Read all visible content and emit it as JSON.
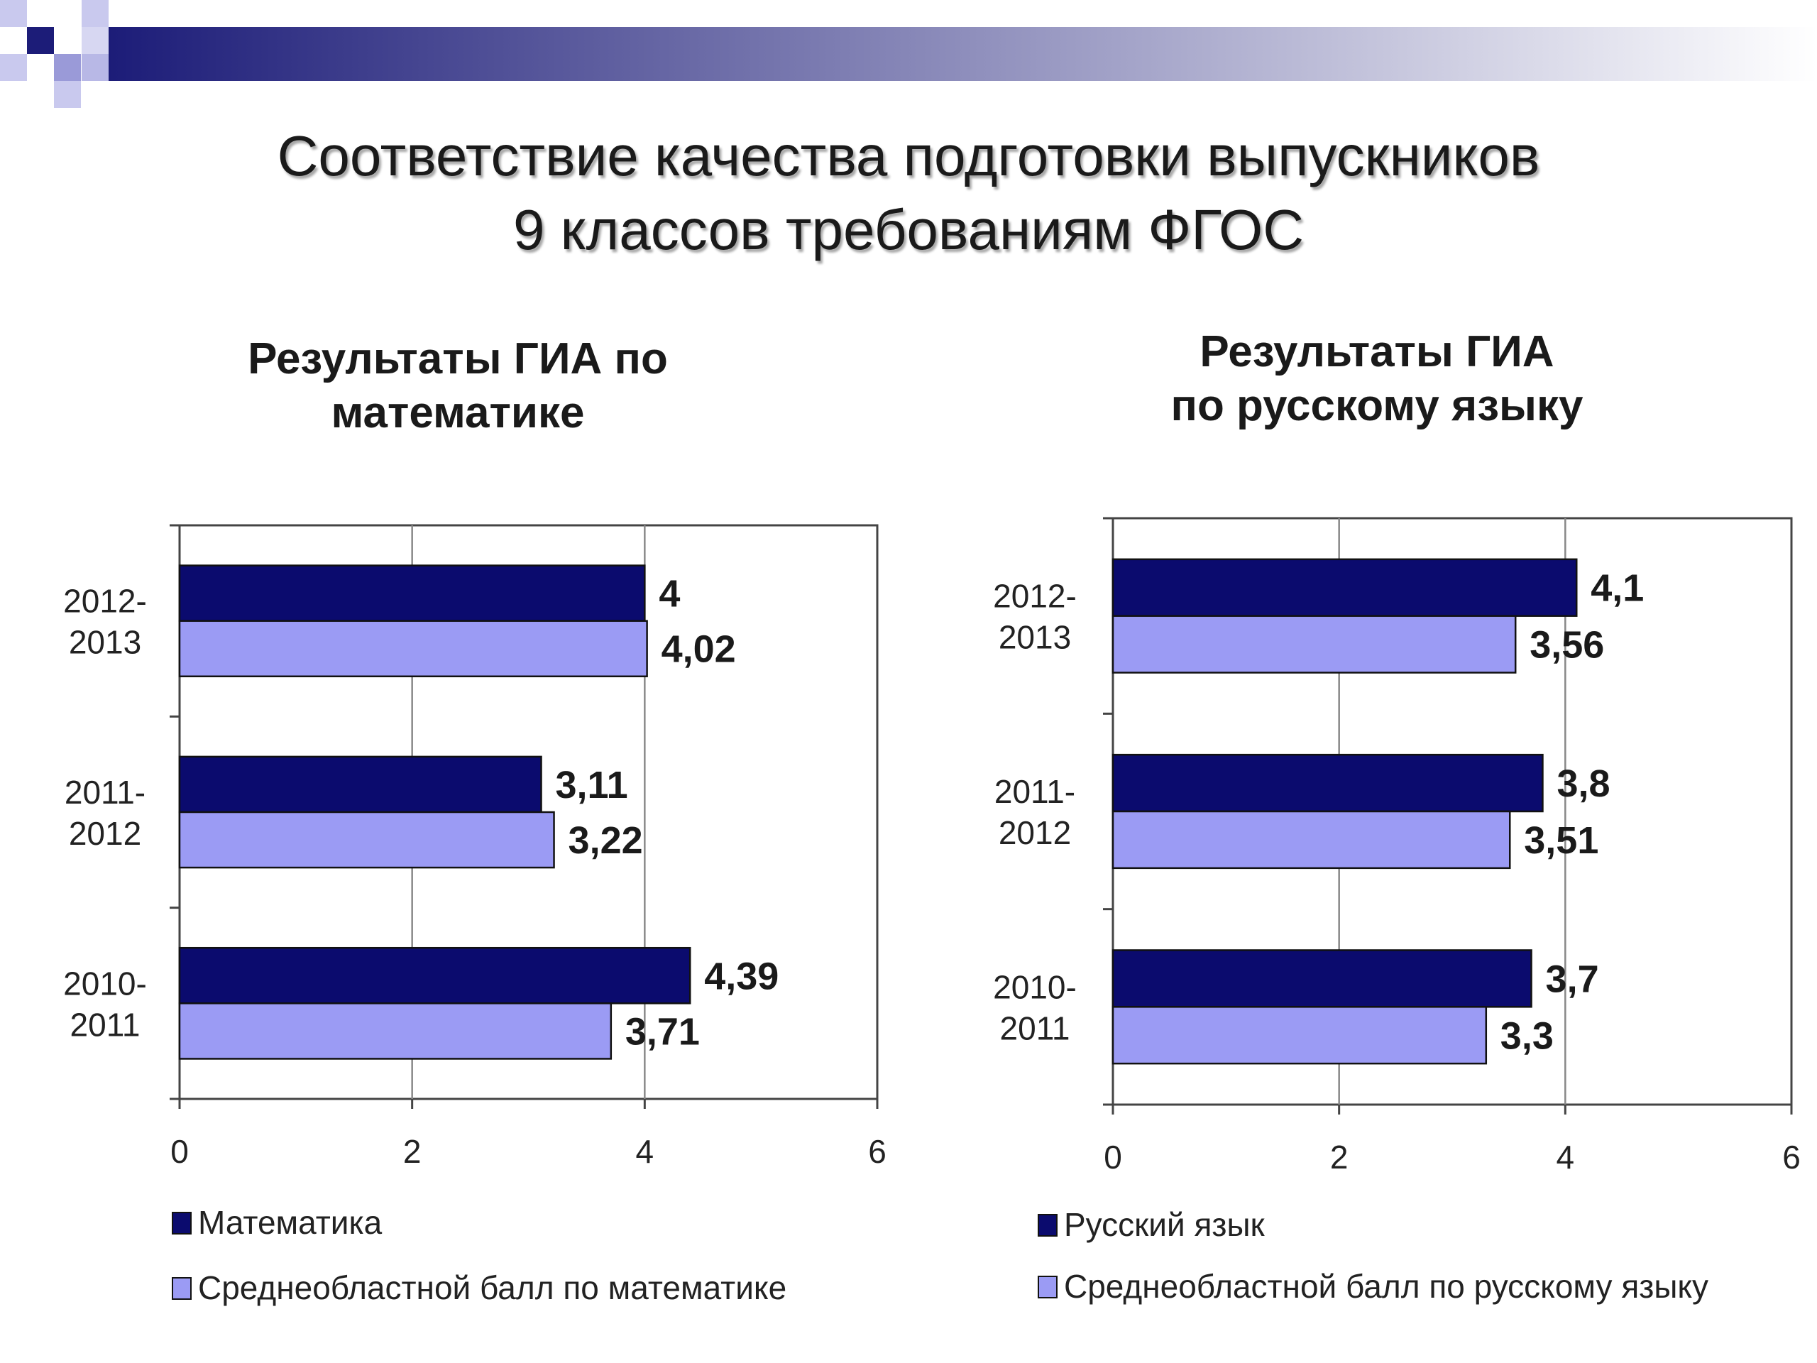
{
  "slide": {
    "title_line1": "Соответствие качества подготовки выпускников",
    "title_line2": "9 классов требованиям ФГОС"
  },
  "colors": {
    "series_dark": "#0b0b6e",
    "series_light": "#9b9bf4",
    "banner_dark": "#1c1c78",
    "banner_light": "#ffffff"
  },
  "chart_data": [
    {
      "type": "bar",
      "orientation": "horizontal",
      "title_line1": "Результаты ГИА по",
      "title_line2": "математике",
      "categories": [
        "2012-2013",
        "2011-2012",
        "2010-2011"
      ],
      "category_labels": [
        [
          "2012-",
          "2013"
        ],
        [
          "2011-",
          "2012"
        ],
        [
          "2010-",
          "2011"
        ]
      ],
      "series": [
        {
          "name": "Математика",
          "values": [
            4,
            3.11,
            4.39
          ],
          "labels": [
            "4",
            "3,11",
            "4,39"
          ]
        },
        {
          "name": "Среднеобластной балл по математике",
          "values": [
            4.02,
            3.22,
            3.71
          ],
          "labels": [
            "4,02",
            "3,22",
            "3,71"
          ]
        }
      ],
      "xlim": [
        0,
        6
      ],
      "xticks": [
        0,
        2,
        4,
        6
      ],
      "xtick_labels": [
        "0",
        "2",
        "4",
        "6"
      ],
      "grid": true,
      "legend": "bottom"
    },
    {
      "type": "bar",
      "orientation": "horizontal",
      "title_line1": "Результаты ГИА",
      "title_line2": "по русскому языку",
      "categories": [
        "2012-2013",
        "2011-2012",
        "2010-2011"
      ],
      "category_labels": [
        [
          "2012-",
          "2013"
        ],
        [
          "2011-",
          "2012"
        ],
        [
          "2010-",
          "2011"
        ]
      ],
      "series": [
        {
          "name": "Русский язык",
          "values": [
            4.1,
            3.8,
            3.7
          ],
          "labels": [
            "4,1",
            "3,8",
            "3,7"
          ]
        },
        {
          "name": "Среднеобластной балл по русскому языку",
          "values": [
            3.56,
            3.51,
            3.3
          ],
          "labels": [
            "3,56",
            "3,51",
            "3,3"
          ]
        }
      ],
      "xlim": [
        0,
        6
      ],
      "xticks": [
        0,
        2,
        4,
        6
      ],
      "xtick_labels": [
        "0",
        "2",
        "4",
        "6"
      ],
      "grid": true,
      "legend": "bottom"
    }
  ]
}
